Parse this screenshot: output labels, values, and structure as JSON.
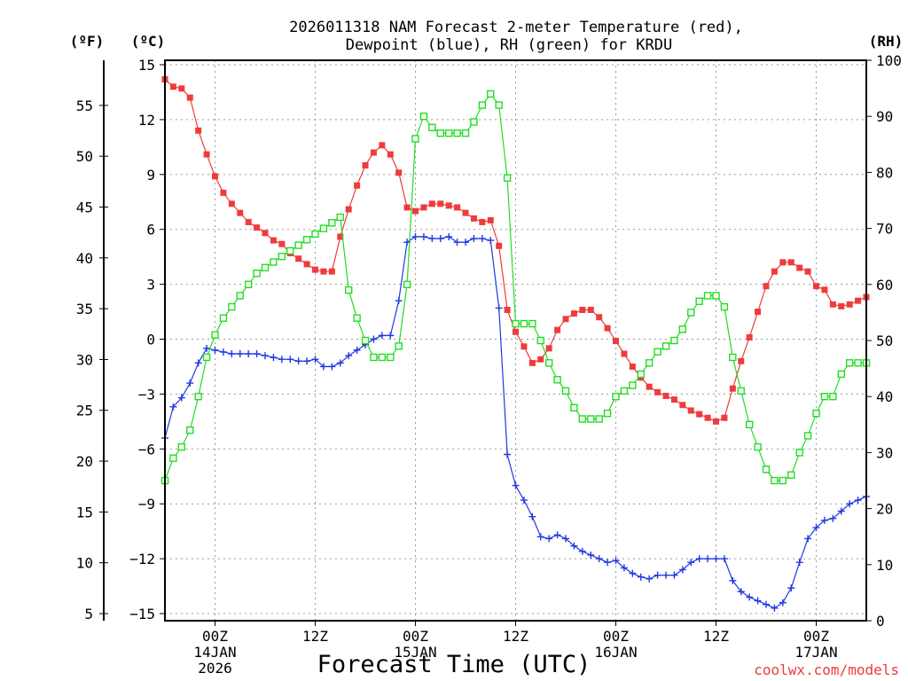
{
  "chart_data": {
    "type": "line",
    "title": "2026011318 NAM Forecast 2-meter Temperature (red),",
    "subtitle": "Dewpoint (blue), RH (green) for KRDU",
    "xlabel": "Forecast Time (UTC)",
    "credit": "coolwx.com/models",
    "axis_labels": {
      "f": "(ºF)",
      "c": "(ºC)",
      "rh": "(RH)"
    },
    "x_unit": "hours since 2026-01-13 18Z",
    "xlim": [
      0,
      84
    ],
    "ylim_c": [
      -15.5,
      15.5
    ],
    "ylim_rh": [
      0,
      100
    ],
    "c_ticks": [
      15,
      12,
      9,
      6,
      3,
      0,
      -3,
      -6,
      -9,
      -12,
      -15
    ],
    "c_tick_labels": [
      "15",
      "12",
      "9",
      "6",
      "3",
      "0",
      "−3",
      "−6",
      "−9",
      "−12",
      "−15"
    ],
    "f_ticks": [
      55,
      50,
      45,
      40,
      35,
      30,
      25,
      20,
      15,
      10,
      5
    ],
    "f_tick_labels": [
      "55",
      "50",
      "45",
      "40",
      "35",
      "30",
      "25",
      "20",
      "15",
      "10",
      "5"
    ],
    "rh_ticks": [
      100,
      90,
      80,
      70,
      60,
      50,
      40,
      30,
      20,
      10,
      0
    ],
    "rh_tick_labels": [
      "100",
      "90",
      "80",
      "70",
      "60",
      "50",
      "40",
      "30",
      "20",
      "10",
      "0"
    ],
    "x_ticks": [
      {
        "hour": 6,
        "time": "00Z",
        "day": "14JAN",
        "year": "2026"
      },
      {
        "hour": 18,
        "time": "12Z",
        "day": "",
        "year": ""
      },
      {
        "hour": 30,
        "time": "00Z",
        "day": "15JAN",
        "year": ""
      },
      {
        "hour": 42,
        "time": "12Z",
        "day": "",
        "year": ""
      },
      {
        "hour": 54,
        "time": "00Z",
        "day": "16JAN",
        "year": ""
      },
      {
        "hour": 66,
        "time": "12Z",
        "day": "",
        "year": ""
      },
      {
        "hour": 78,
        "time": "00Z",
        "day": "17JAN",
        "year": ""
      }
    ],
    "series": [
      {
        "name": "2-meter Temperature",
        "unit": "C",
        "color": "#ef3b3b",
        "marker": "filled-square",
        "points": [
          [
            0,
            14.2
          ],
          [
            1,
            13.8
          ],
          [
            2,
            13.7
          ],
          [
            3,
            13.2
          ],
          [
            4,
            11.4
          ],
          [
            5,
            10.1
          ],
          [
            6,
            8.9
          ],
          [
            7,
            8.0
          ],
          [
            8,
            7.4
          ],
          [
            9,
            6.9
          ],
          [
            10,
            6.4
          ],
          [
            11,
            6.1
          ],
          [
            12,
            5.8
          ],
          [
            13,
            5.4
          ],
          [
            14,
            5.2
          ],
          [
            15,
            4.7
          ],
          [
            16,
            4.4
          ],
          [
            17,
            4.1
          ],
          [
            18,
            3.8
          ],
          [
            19,
            3.7
          ],
          [
            20,
            3.7
          ],
          [
            21,
            5.6
          ],
          [
            22,
            7.1
          ],
          [
            23,
            8.4
          ],
          [
            24,
            9.5
          ],
          [
            25,
            10.2
          ],
          [
            26,
            10.6
          ],
          [
            27,
            10.1
          ],
          [
            28,
            9.1
          ],
          [
            29,
            7.2
          ],
          [
            30,
            7.0
          ],
          [
            31,
            7.2
          ],
          [
            32,
            7.4
          ],
          [
            33,
            7.4
          ],
          [
            34,
            7.3
          ],
          [
            35,
            7.2
          ],
          [
            36,
            6.9
          ],
          [
            37,
            6.6
          ],
          [
            38,
            6.4
          ],
          [
            39,
            6.5
          ],
          [
            40,
            5.1
          ],
          [
            41,
            1.6
          ],
          [
            42,
            0.4
          ],
          [
            43,
            -0.4
          ],
          [
            44,
            -1.3
          ],
          [
            45,
            -1.1
          ],
          [
            46,
            -0.5
          ],
          [
            47,
            0.5
          ],
          [
            48,
            1.1
          ],
          [
            49,
            1.4
          ],
          [
            50,
            1.6
          ],
          [
            51,
            1.6
          ],
          [
            52,
            1.2
          ],
          [
            53,
            0.6
          ],
          [
            54,
            -0.1
          ],
          [
            55,
            -0.8
          ],
          [
            56,
            -1.5
          ],
          [
            57,
            -2.1
          ],
          [
            58,
            -2.6
          ],
          [
            59,
            -2.9
          ],
          [
            60,
            -3.1
          ],
          [
            61,
            -3.3
          ],
          [
            62,
            -3.6
          ],
          [
            63,
            -3.9
          ],
          [
            64,
            -4.1
          ],
          [
            65,
            -4.3
          ],
          [
            66,
            -4.5
          ],
          [
            67,
            -4.3
          ],
          [
            68,
            -2.7
          ],
          [
            69,
            -1.2
          ],
          [
            70,
            0.1
          ],
          [
            71,
            1.5
          ],
          [
            72,
            2.9
          ],
          [
            73,
            3.7
          ],
          [
            74,
            4.2
          ],
          [
            75,
            4.2
          ],
          [
            76,
            3.9
          ],
          [
            77,
            3.7
          ],
          [
            78,
            2.9
          ],
          [
            79,
            2.7
          ],
          [
            80,
            1.9
          ],
          [
            81,
            1.8
          ],
          [
            82,
            1.9
          ],
          [
            83,
            2.1
          ],
          [
            84,
            2.3
          ]
        ]
      },
      {
        "name": "2-meter Dewpoint",
        "unit": "C",
        "color": "#2038e0",
        "marker": "plus",
        "points": [
          [
            0,
            -5.4
          ],
          [
            1,
            -3.7
          ],
          [
            2,
            -3.2
          ],
          [
            3,
            -2.4
          ],
          [
            4,
            -1.3
          ],
          [
            5,
            -0.5
          ],
          [
            6,
            -0.6
          ],
          [
            7,
            -0.7
          ],
          [
            8,
            -0.8
          ],
          [
            9,
            -0.8
          ],
          [
            10,
            -0.8
          ],
          [
            11,
            -0.8
          ],
          [
            12,
            -0.9
          ],
          [
            13,
            -1.0
          ],
          [
            14,
            -1.1
          ],
          [
            15,
            -1.1
          ],
          [
            16,
            -1.2
          ],
          [
            17,
            -1.2
          ],
          [
            18,
            -1.1
          ],
          [
            19,
            -1.5
          ],
          [
            20,
            -1.5
          ],
          [
            21,
            -1.3
          ],
          [
            22,
            -0.9
          ],
          [
            23,
            -0.6
          ],
          [
            24,
            -0.3
          ],
          [
            25,
            0.0
          ],
          [
            26,
            0.2
          ],
          [
            27,
            0.2
          ],
          [
            28,
            2.1
          ],
          [
            29,
            5.3
          ],
          [
            30,
            5.6
          ],
          [
            31,
            5.6
          ],
          [
            32,
            5.5
          ],
          [
            33,
            5.5
          ],
          [
            34,
            5.6
          ],
          [
            35,
            5.3
          ],
          [
            36,
            5.3
          ],
          [
            37,
            5.5
          ],
          [
            38,
            5.5
          ],
          [
            39,
            5.4
          ],
          [
            40,
            1.7
          ],
          [
            41,
            -6.3
          ],
          [
            42,
            -8.0
          ],
          [
            43,
            -8.8
          ],
          [
            44,
            -9.7
          ],
          [
            45,
            -10.8
          ],
          [
            46,
            -10.9
          ],
          [
            47,
            -10.7
          ],
          [
            48,
            -10.9
          ],
          [
            49,
            -11.3
          ],
          [
            50,
            -11.6
          ],
          [
            51,
            -11.8
          ],
          [
            52,
            -12.0
          ],
          [
            53,
            -12.2
          ],
          [
            54,
            -12.1
          ],
          [
            55,
            -12.5
          ],
          [
            56,
            -12.8
          ],
          [
            57,
            -13.0
          ],
          [
            58,
            -13.1
          ],
          [
            59,
            -12.9
          ],
          [
            60,
            -12.9
          ],
          [
            61,
            -12.9
          ],
          [
            62,
            -12.6
          ],
          [
            63,
            -12.2
          ],
          [
            64,
            -12.0
          ],
          [
            65,
            -12.0
          ],
          [
            66,
            -12.0
          ],
          [
            67,
            -12.0
          ],
          [
            68,
            -13.2
          ],
          [
            69,
            -13.8
          ],
          [
            70,
            -14.1
          ],
          [
            71,
            -14.3
          ],
          [
            72,
            -14.5
          ],
          [
            73,
            -14.7
          ],
          [
            74,
            -14.4
          ],
          [
            75,
            -13.6
          ],
          [
            76,
            -12.2
          ],
          [
            77,
            -10.9
          ],
          [
            78,
            -10.3
          ],
          [
            79,
            -9.9
          ],
          [
            80,
            -9.8
          ],
          [
            81,
            -9.4
          ],
          [
            82,
            -9.0
          ],
          [
            83,
            -8.8
          ],
          [
            84,
            -8.6
          ]
        ]
      },
      {
        "name": "Relative Humidity",
        "unit": "%",
        "color": "#22dd22",
        "marker": "open-square",
        "points": [
          [
            0,
            25
          ],
          [
            1,
            29
          ],
          [
            2,
            31
          ],
          [
            3,
            34
          ],
          [
            4,
            40
          ],
          [
            5,
            47
          ],
          [
            6,
            51
          ],
          [
            7,
            54
          ],
          [
            8,
            56
          ],
          [
            9,
            58
          ],
          [
            10,
            60
          ],
          [
            11,
            62
          ],
          [
            12,
            63
          ],
          [
            13,
            64
          ],
          [
            14,
            65
          ],
          [
            15,
            66
          ],
          [
            16,
            67
          ],
          [
            17,
            68
          ],
          [
            18,
            69
          ],
          [
            19,
            70
          ],
          [
            20,
            71
          ],
          [
            21,
            72
          ],
          [
            22,
            59
          ],
          [
            23,
            54
          ],
          [
            24,
            50
          ],
          [
            25,
            47
          ],
          [
            26,
            47
          ],
          [
            27,
            47
          ],
          [
            28,
            49
          ],
          [
            29,
            60
          ],
          [
            30,
            86
          ],
          [
            31,
            90
          ],
          [
            32,
            88
          ],
          [
            33,
            87
          ],
          [
            34,
            87
          ],
          [
            35,
            87
          ],
          [
            36,
            87
          ],
          [
            37,
            89
          ],
          [
            38,
            92
          ],
          [
            39,
            94
          ],
          [
            40,
            92
          ],
          [
            41,
            79
          ],
          [
            42,
            53
          ],
          [
            43,
            53
          ],
          [
            44,
            53
          ],
          [
            45,
            50
          ],
          [
            46,
            46
          ],
          [
            47,
            43
          ],
          [
            48,
            41
          ],
          [
            49,
            38
          ],
          [
            50,
            36
          ],
          [
            51,
            36
          ],
          [
            52,
            36
          ],
          [
            53,
            37
          ],
          [
            54,
            40
          ],
          [
            55,
            41
          ],
          [
            56,
            42
          ],
          [
            57,
            44
          ],
          [
            58,
            46
          ],
          [
            59,
            48
          ],
          [
            60,
            49
          ],
          [
            61,
            50
          ],
          [
            62,
            52
          ],
          [
            63,
            55
          ],
          [
            64,
            57
          ],
          [
            65,
            58
          ],
          [
            66,
            58
          ],
          [
            67,
            56
          ],
          [
            68,
            47
          ],
          [
            69,
            41
          ],
          [
            70,
            35
          ],
          [
            71,
            31
          ],
          [
            72,
            27
          ],
          [
            73,
            25
          ],
          [
            74,
            25
          ],
          [
            75,
            26
          ],
          [
            76,
            30
          ],
          [
            77,
            33
          ],
          [
            78,
            37
          ],
          [
            79,
            40
          ],
          [
            80,
            40
          ],
          [
            81,
            44
          ],
          [
            82,
            46
          ],
          [
            83,
            46
          ],
          [
            84,
            46
          ]
        ]
      }
    ]
  }
}
